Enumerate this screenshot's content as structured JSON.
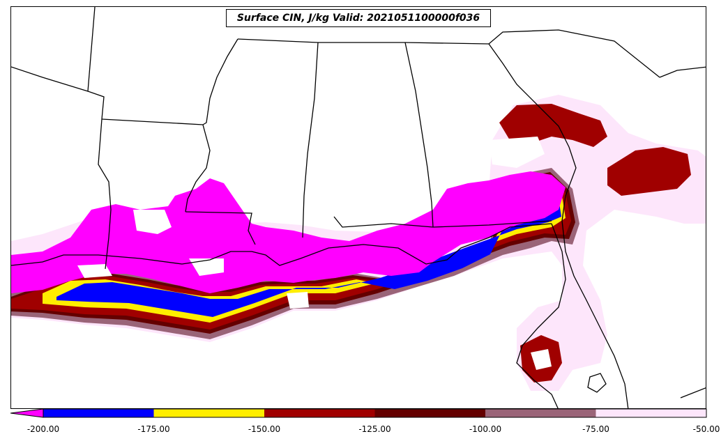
{
  "title": "Surface CIN, J/kg Valid: 2021051100000f036",
  "colorbar": {
    "ticks": [
      "-200.00",
      "-175.00",
      "-150.00",
      "-125.00",
      "-100.00",
      "-75.00",
      "-50.00"
    ],
    "bins": [
      {
        "range": [
          -200,
          -175
        ],
        "color": "#0000ff"
      },
      {
        "range": [
          -175,
          -150
        ],
        "color": "#ffee00"
      },
      {
        "range": [
          -150,
          -125
        ],
        "color": "#a00000"
      },
      {
        "range": [
          -125,
          -100
        ],
        "color": "#640000"
      },
      {
        "range": [
          -100,
          -75
        ],
        "color": "#9a6478"
      },
      {
        "range": [
          -75,
          -50
        ],
        "color": "#fde6fb"
      }
    ],
    "under_color": "#ff00ff",
    "extend": "min"
  },
  "colors": {
    "magenta": "#ff00ff",
    "blue": "#0000ff",
    "yellow": "#ffee00",
    "red": "#a00000",
    "darkred": "#640000",
    "mauve": "#9a6478",
    "pink": "#fde6fb",
    "border": "#000000"
  }
}
